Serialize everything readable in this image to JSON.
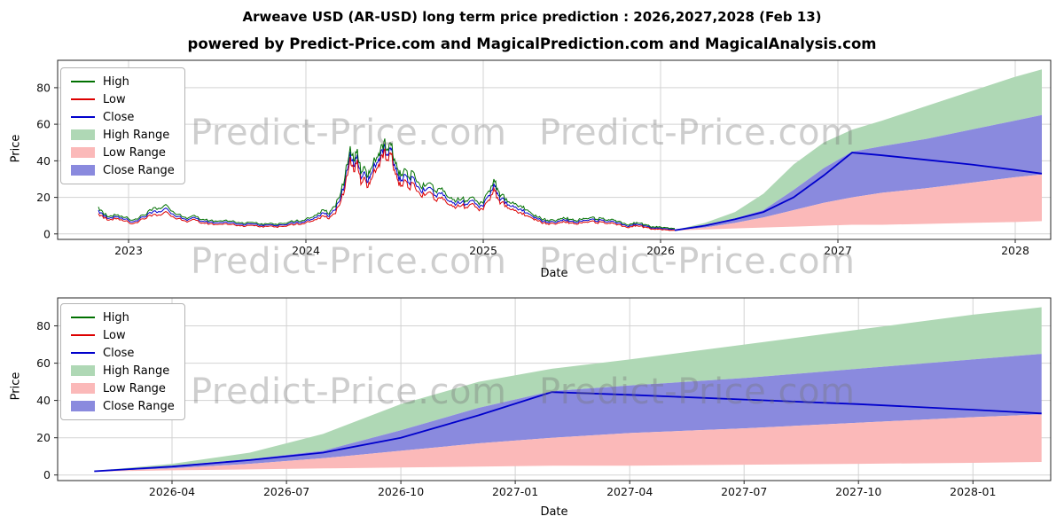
{
  "header": {
    "title": "Arweave USD (AR-USD) long term price prediction : 2026,2027,2028 (Feb 13)",
    "subtitle": "powered by Predict-Price.com and MagicalPrediction.com and MagicalAnalysis.com"
  },
  "watermark_text": "Predict-Price.com",
  "colors": {
    "high": "#007000",
    "low": "#dd0000",
    "close": "#0000cc",
    "high_range": "#afd8b5",
    "low_range": "#fbb9b9",
    "close_range": "#8a8ade",
    "grid": "#d3d3d3",
    "axis": "#262626",
    "tick_text": "#111111"
  },
  "legend": [
    {
      "label": "High",
      "type": "line",
      "color": "#007000"
    },
    {
      "label": "Low",
      "type": "line",
      "color": "#dd0000"
    },
    {
      "label": "Close",
      "type": "line",
      "color": "#0000cc"
    },
    {
      "label": "High Range",
      "type": "patch",
      "color": "#afd8b5"
    },
    {
      "label": "Low Range",
      "type": "patch",
      "color": "#fbb9b9"
    },
    {
      "label": "Close Range",
      "type": "patch",
      "color": "#8a8ade"
    }
  ],
  "forecast": {
    "t": [
      2026.08,
      2026.25,
      2026.42,
      2026.58,
      2026.75,
      2026.92,
      2027.08,
      2027.25,
      2027.5,
      2027.75,
      2028.0,
      2028.15
    ],
    "high": [
      2.2,
      6,
      12,
      22,
      38,
      50,
      57,
      62,
      70,
      78,
      86,
      90
    ],
    "close_high": [
      2.1,
      5,
      8.5,
      13,
      24,
      36,
      45,
      48,
      52,
      57,
      62,
      65
    ],
    "close": [
      2.0,
      4.5,
      8,
      12,
      20,
      32,
      44.5,
      43,
      40.5,
      38,
      35,
      33
    ],
    "close_low": [
      1.9,
      3.5,
      6,
      9,
      13,
      17,
      20,
      22.5,
      25,
      28,
      31,
      32.5
    ],
    "low": [
      1.8,
      2.5,
      3,
      3.5,
      4,
      4.5,
      5,
      5,
      5.5,
      6,
      6.5,
      7
    ]
  },
  "chart_data": [
    {
      "type": "line",
      "name": "history-and-forecast",
      "xlabel": "Date",
      "ylabel": "Price",
      "x_tick_labels": [
        "2023",
        "2024",
        "2025",
        "2026",
        "2027",
        "2028"
      ],
      "x_tick_values": [
        2023,
        2024,
        2025,
        2026,
        2027,
        2028
      ],
      "y_ticks": [
        0,
        20,
        40,
        60,
        80
      ],
      "xlim": [
        2022.6,
        2028.2
      ],
      "ylim": [
        -3,
        95
      ],
      "series_note": "historical_ohlc rows are [time, high, low, close]",
      "historical_ohlc": [
        [
          2022.83,
          14.8,
          11.2,
          13.0
        ],
        [
          2022.86,
          10.5,
          8.5,
          9.5
        ],
        [
          2022.9,
          10.0,
          8.0,
          9.0
        ],
        [
          2022.94,
          10.5,
          8.5,
          9.5
        ],
        [
          2022.98,
          9.0,
          7.0,
          8.0
        ],
        [
          2023.02,
          7.5,
          5.5,
          6.5
        ],
        [
          2023.06,
          9.0,
          7.0,
          8.0
        ],
        [
          2023.1,
          10.5,
          8.5,
          9.5
        ],
        [
          2023.14,
          14.3,
          10.7,
          12.5
        ],
        [
          2023.18,
          13.8,
          10.2,
          12.0
        ],
        [
          2023.22,
          15.3,
          11.7,
          13.5
        ],
        [
          2023.26,
          11.3,
          8.7,
          10.0
        ],
        [
          2023.3,
          9.5,
          7.5,
          8.5
        ],
        [
          2023.34,
          9.0,
          7.0,
          8.0
        ],
        [
          2023.38,
          9.5,
          7.5,
          8.5
        ],
        [
          2023.42,
          8.0,
          6.0,
          7.0
        ],
        [
          2023.46,
          7.4,
          5.6,
          6.5
        ],
        [
          2023.5,
          6.9,
          5.1,
          6.0
        ],
        [
          2023.54,
          7.4,
          5.6,
          6.5
        ],
        [
          2023.58,
          6.9,
          5.1,
          6.0
        ],
        [
          2023.62,
          6.3,
          4.7,
          5.5
        ],
        [
          2023.66,
          5.8,
          4.2,
          5.0
        ],
        [
          2023.7,
          6.3,
          4.7,
          5.5
        ],
        [
          2023.74,
          5.2,
          3.8,
          4.5
        ],
        [
          2023.78,
          5.5,
          4.1,
          4.8
        ],
        [
          2023.82,
          5.2,
          3.8,
          4.5
        ],
        [
          2023.86,
          5.8,
          4.2,
          5.0
        ],
        [
          2023.9,
          6.3,
          4.7,
          5.5
        ],
        [
          2023.94,
          6.9,
          5.1,
          6.0
        ],
        [
          2023.98,
          7.4,
          5.6,
          6.5
        ],
        [
          2024.02,
          8.5,
          6.5,
          7.5
        ],
        [
          2024.06,
          10.2,
          7.8,
          9.0
        ],
        [
          2024.1,
          13.2,
          9.8,
          11.5
        ],
        [
          2024.13,
          10.8,
          8.2,
          9.5
        ],
        [
          2024.16,
          15.0,
          11.0,
          13.0
        ],
        [
          2024.19,
          20.2,
          15.8,
          18.0
        ],
        [
          2024.22,
          31.0,
          25.0,
          28.0
        ],
        [
          2024.25,
          48.0,
          42.0,
          45.0
        ],
        [
          2024.27,
          40.0,
          34.0,
          37.0
        ],
        [
          2024.29,
          46.5,
          40.5,
          43.5
        ],
        [
          2024.31,
          33.0,
          27.0,
          30.0
        ],
        [
          2024.33,
          37.0,
          31.0,
          34.0
        ],
        [
          2024.35,
          31.5,
          25.5,
          28.5
        ],
        [
          2024.37,
          36.0,
          30.0,
          33.0
        ],
        [
          2024.4,
          42.0,
          36.0,
          39.0
        ],
        [
          2024.42,
          46.0,
          40.0,
          43.0
        ],
        [
          2024.44,
          50.5,
          45.5,
          48.0
        ],
        [
          2024.46,
          46.5,
          40.5,
          43.5
        ],
        [
          2024.48,
          48.5,
          43.5,
          46.0
        ],
        [
          2024.5,
          41.0,
          35.0,
          38.0
        ],
        [
          2024.52,
          35.0,
          29.0,
          32.0
        ],
        [
          2024.54,
          32.5,
          26.5,
          29.5
        ],
        [
          2024.56,
          35.5,
          29.5,
          32.5
        ],
        [
          2024.58,
          31.0,
          25.0,
          28.0
        ],
        [
          2024.61,
          33.5,
          27.5,
          30.5
        ],
        [
          2024.64,
          27.5,
          22.5,
          25.0
        ],
        [
          2024.67,
          26.0,
          21.0,
          23.5
        ],
        [
          2024.7,
          28.0,
          23.0,
          25.5
        ],
        [
          2024.73,
          23.5,
          18.5,
          21.0
        ],
        [
          2024.76,
          24.5,
          19.5,
          22.0
        ],
        [
          2024.79,
          21.5,
          17.5,
          19.5
        ],
        [
          2024.82,
          20.0,
          16.0,
          18.0
        ],
        [
          2024.85,
          18.3,
          14.7,
          16.5
        ],
        [
          2024.88,
          19.3,
          15.7,
          17.5
        ],
        [
          2024.91,
          17.8,
          14.2,
          16.0
        ],
        [
          2024.94,
          20.3,
          16.7,
          18.5
        ],
        [
          2024.97,
          17.3,
          13.7,
          15.5
        ],
        [
          2025.0,
          16.8,
          13.2,
          15.0
        ],
        [
          2025.03,
          23.5,
          18.5,
          21.0
        ],
        [
          2025.06,
          30.0,
          25.0,
          27.5
        ],
        [
          2025.08,
          25.0,
          20.0,
          22.5
        ],
        [
          2025.1,
          21.0,
          17.0,
          19.0
        ],
        [
          2025.13,
          19.3,
          15.7,
          17.5
        ],
        [
          2025.16,
          16.8,
          13.2,
          15.0
        ],
        [
          2025.19,
          15.8,
          12.2,
          14.0
        ],
        [
          2025.22,
          14.3,
          10.7,
          12.5
        ],
        [
          2025.25,
          13.1,
          9.9,
          11.5
        ],
        [
          2025.28,
          10.6,
          8.4,
          9.5
        ],
        [
          2025.31,
          9.0,
          7.0,
          8.0
        ],
        [
          2025.34,
          8.0,
          6.0,
          7.0
        ],
        [
          2025.37,
          6.9,
          5.1,
          6.0
        ],
        [
          2025.4,
          7.4,
          5.6,
          6.5
        ],
        [
          2025.43,
          8.0,
          6.0,
          7.0
        ],
        [
          2025.46,
          8.5,
          6.5,
          7.5
        ],
        [
          2025.49,
          8.0,
          6.0,
          7.0
        ],
        [
          2025.52,
          7.4,
          5.6,
          6.5
        ],
        [
          2025.55,
          8.0,
          6.0,
          7.0
        ],
        [
          2025.58,
          8.5,
          6.5,
          7.5
        ],
        [
          2025.61,
          9.0,
          7.0,
          8.0
        ],
        [
          2025.64,
          8.0,
          6.0,
          7.0
        ],
        [
          2025.67,
          8.5,
          6.5,
          7.5
        ],
        [
          2025.7,
          7.4,
          5.6,
          6.5
        ],
        [
          2025.73,
          8.0,
          6.0,
          7.0
        ],
        [
          2025.76,
          6.9,
          5.1,
          6.0
        ],
        [
          2025.79,
          5.8,
          4.2,
          5.0
        ],
        [
          2025.82,
          4.7,
          3.3,
          4.0
        ],
        [
          2025.85,
          6.3,
          4.7,
          5.5
        ],
        [
          2025.88,
          5.8,
          4.2,
          5.0
        ],
        [
          2025.91,
          5.2,
          3.8,
          4.5
        ],
        [
          2025.94,
          4.1,
          2.9,
          3.5
        ],
        [
          2025.97,
          3.6,
          2.4,
          3.0
        ],
        [
          2026.0,
          3.8,
          2.6,
          3.2
        ],
        [
          2026.04,
          3.4,
          2.2,
          2.8
        ],
        [
          2026.08,
          3.0,
          2.0,
          2.5
        ]
      ]
    },
    {
      "type": "line",
      "name": "forecast-detail",
      "xlabel": "Date",
      "ylabel": "Price",
      "x_tick_labels": [
        "2026-04",
        "2026-07",
        "2026-10",
        "2027-01",
        "2027-04",
        "2027-07",
        "2027-10",
        "2028-01"
      ],
      "x_tick_values": [
        2026.25,
        2026.5,
        2026.75,
        2027.0,
        2027.25,
        2027.5,
        2027.75,
        2028.0
      ],
      "y_ticks": [
        0,
        20,
        40,
        60,
        80
      ],
      "xlim": [
        2026.0,
        2028.17
      ],
      "ylim": [
        -3,
        95
      ]
    }
  ]
}
